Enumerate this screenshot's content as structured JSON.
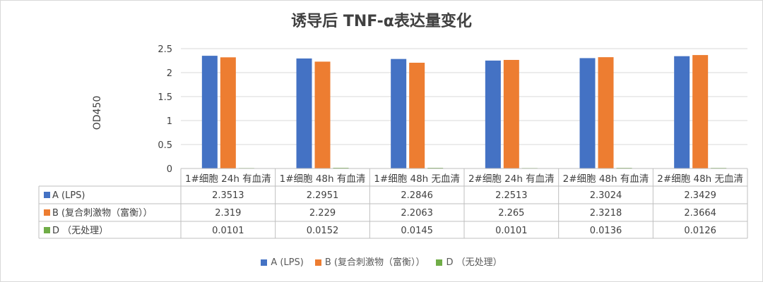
{
  "chart_data": {
    "type": "bar",
    "title": "诱导后 TNF-α表达量变化",
    "ylabel": "OD450",
    "ylim": [
      0,
      2.5
    ],
    "yticks": [
      "0",
      "0.5",
      "1",
      "1.5",
      "2",
      "2.5"
    ],
    "yticks_values": [
      0,
      0.5,
      1,
      1.5,
      2,
      2.5
    ],
    "categories": [
      "1#细胞 24h 有血清",
      "1#细胞 48h 有血清",
      "1#细胞 48h 无血清",
      "2#细胞 24h 有血清",
      "2#细胞 48h 有血清",
      "2#细胞 48h 无血清"
    ],
    "series": [
      {
        "name": "A (LPS)",
        "color": "#4472C4",
        "values": [
          2.3513,
          2.2951,
          2.2846,
          2.2513,
          2.3024,
          2.3429
        ],
        "labels": [
          "2.3513",
          "2.2951",
          "2.2846",
          "2.2513",
          "2.3024",
          "2.3429"
        ]
      },
      {
        "name": "B (复合刺激物（富衡））",
        "color": "#ED7D31",
        "values": [
          2.319,
          2.229,
          2.2063,
          2.265,
          2.3218,
          2.3664
        ],
        "labels": [
          "2.319",
          "2.229",
          "2.2063",
          "2.265",
          "2.3218",
          "2.3664"
        ]
      },
      {
        "name": "D （无处理）",
        "color": "#70AD47",
        "values": [
          0.0101,
          0.0152,
          0.0145,
          0.0101,
          0.0136,
          0.0126
        ],
        "labels": [
          "0.0101",
          "0.0152",
          "0.0145",
          "0.0101",
          "0.0136",
          "0.0126"
        ]
      }
    ],
    "grid": true,
    "legend": "bottom",
    "data_table": true
  }
}
